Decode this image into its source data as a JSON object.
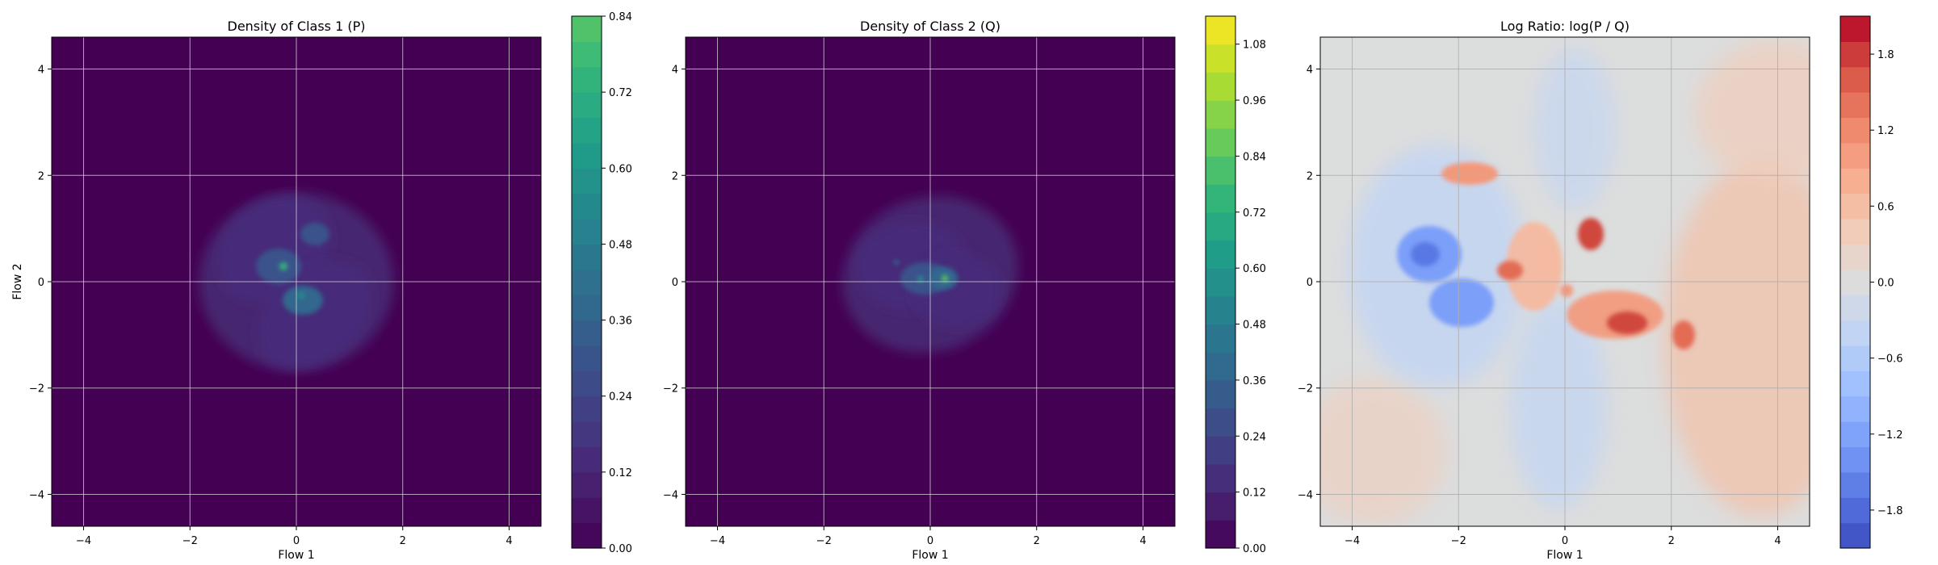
{
  "chart_data": [
    {
      "type": "heatmap",
      "title": "Density of Class 1 (P)",
      "xlabel": "Flow 1",
      "ylabel": "Flow 2",
      "xlim": [
        -4.6,
        4.6
      ],
      "ylim": [
        -4.6,
        4.6
      ],
      "xticks": [
        -4,
        -2,
        0,
        2,
        4
      ],
      "yticks": [
        -4,
        -2,
        0,
        2,
        4
      ],
      "xtick_labels": [
        "−4",
        "−2",
        "0",
        "2",
        "4"
      ],
      "ytick_labels": [
        "−4",
        "−2",
        "0",
        "2",
        "4"
      ],
      "grid": true,
      "colormap": "viridis",
      "colorbar": {
        "min": 0.0,
        "max": 0.84,
        "levels": 21,
        "ticks": [
          0.0,
          0.12,
          0.24,
          0.36,
          0.48,
          0.6,
          0.72,
          0.84
        ],
        "tick_labels": [
          "0.00",
          "0.12",
          "0.24",
          "0.36",
          "0.48",
          "0.60",
          "0.72",
          "0.84"
        ]
      },
      "density_peaks": [
        {
          "x": -0.25,
          "y": 0.25,
          "value": 0.6
        },
        {
          "x": 0.1,
          "y": -0.3,
          "value": 0.5
        },
        {
          "x": 0.35,
          "y": 0.7,
          "value": 0.3
        }
      ]
    },
    {
      "type": "heatmap",
      "title": "Density of Class 2 (Q)",
      "xlabel": "Flow 1",
      "ylabel": "",
      "xlim": [
        -4.6,
        4.6
      ],
      "ylim": [
        -4.6,
        4.6
      ],
      "xticks": [
        -4,
        -2,
        0,
        2,
        4
      ],
      "yticks": [
        -4,
        -2,
        0,
        2,
        4
      ],
      "xtick_labels": [
        "−4",
        "−2",
        "0",
        "2",
        "4"
      ],
      "ytick_labels": [
        "−4",
        "−2",
        "0",
        "2",
        "4"
      ],
      "grid": true,
      "colormap": "viridis",
      "colorbar": {
        "min": 0.0,
        "max": 1.14,
        "levels": 19,
        "ticks": [
          0.0,
          0.12,
          0.24,
          0.36,
          0.48,
          0.6,
          0.72,
          0.84,
          0.96,
          1.08
        ],
        "tick_labels": [
          "0.00",
          "0.12",
          "0.24",
          "0.36",
          "0.48",
          "0.60",
          "0.72",
          "0.84",
          "0.96",
          "1.08"
        ]
      },
      "density_peaks": [
        {
          "x": 0.25,
          "y": 0.05,
          "value": 0.75
        },
        {
          "x": -0.2,
          "y": 0.0,
          "value": 0.55
        },
        {
          "x": -0.55,
          "y": 0.3,
          "value": 0.3
        }
      ]
    },
    {
      "type": "heatmap",
      "title": "Log Ratio: log(P / Q)",
      "xlabel": "Flow 1",
      "ylabel": "",
      "xlim": [
        -4.6,
        4.6
      ],
      "ylim": [
        -4.6,
        4.6
      ],
      "xticks": [
        -4,
        -2,
        0,
        2,
        4
      ],
      "yticks": [
        -4,
        -2,
        0,
        2,
        4
      ],
      "xtick_labels": [
        "−4",
        "−2",
        "0",
        "2",
        "4"
      ],
      "ytick_labels": [
        "−4",
        "−2",
        "0",
        "2",
        "4"
      ],
      "grid": true,
      "colormap": "coolwarm",
      "colorbar": {
        "min": -2.1,
        "max": 2.1,
        "levels": 21,
        "ticks": [
          -1.8,
          -1.2,
          -0.6,
          0.0,
          0.6,
          1.2,
          1.8
        ],
        "tick_labels": [
          "−1.8",
          "−1.2",
          "−0.6",
          "0.0",
          "0.6",
          "1.2",
          "1.8"
        ]
      },
      "notable_regions": [
        {
          "x": -2.2,
          "y": 0.4,
          "value": -1.5
        },
        {
          "x": -2.0,
          "y": -0.4,
          "value": -1.4
        },
        {
          "x": 0.5,
          "y": 0.8,
          "value": 1.8
        },
        {
          "x": 1.0,
          "y": -0.9,
          "value": 1.7
        },
        {
          "x": -1.5,
          "y": 1.9,
          "value": 1.0
        }
      ]
    }
  ]
}
